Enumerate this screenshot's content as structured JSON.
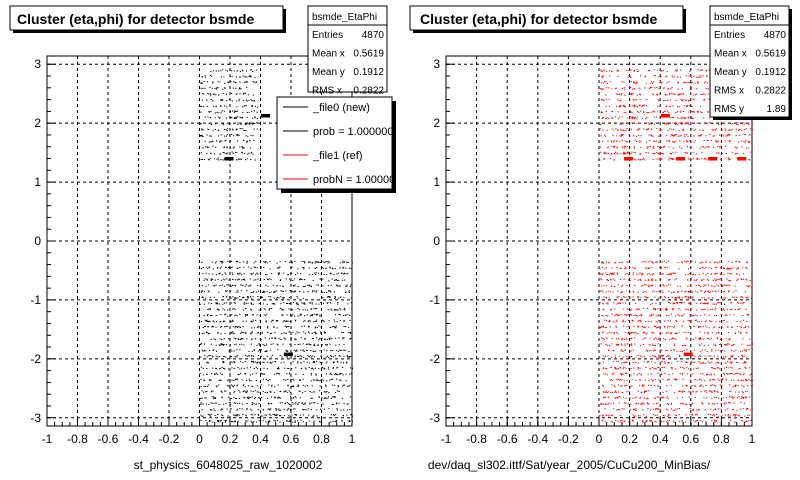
{
  "chart_data": [
    {
      "type": "scatter",
      "title": "Cluster (eta,phi) for detector bsmde",
      "xlabel": "",
      "ylabel": "",
      "xlim": [
        -1,
        1
      ],
      "ylim": [
        -3.14,
        3.14
      ],
      "xticks": [
        "-1",
        "-0.8",
        "-0.6",
        "-0.4",
        "-0.2",
        "0",
        "0.2",
        "0.4",
        "0.6",
        "0.8",
        "1"
      ],
      "yticks": [
        "3",
        "2",
        "1",
        "0",
        "-1",
        "-2",
        "-3"
      ],
      "grid": true,
      "stats": {
        "name": "bsmde_EtaPhi",
        "rows": [
          {
            "label": "Entries",
            "value": "4870"
          },
          {
            "label": "Mean x",
            "value": "0.5619"
          },
          {
            "label": "Mean y",
            "value": "0.1912"
          },
          {
            "label": "RMS x",
            "value": "0.2822"
          }
        ]
      },
      "legend": {
        "placement": "top-right",
        "entries": [
          {
            "label": "_file0 (new)",
            "color": "#000000"
          },
          {
            "label": "prob = 1.000000",
            "color": "#000000"
          },
          {
            "label": "_file1 (ref)",
            "color": "#ff0000"
          },
          {
            "label": "probN = 1.000000",
            "color": "#ff0000"
          }
        ]
      },
      "series": [
        {
          "color": "#000000",
          "regions": [
            {
              "x": [
                0.0,
                0.38
              ],
              "y": [
                1.4,
                3.0
              ]
            },
            {
              "x": [
                0.0,
                1.0
              ],
              "y": [
                -3.05,
                -0.3
              ]
            }
          ],
          "hotspots": [
            {
              "x": 0.19,
              "y": 1.4
            },
            {
              "x": 0.43,
              "y": 2.13
            },
            {
              "x": 0.58,
              "y": -1.92
            }
          ]
        }
      ],
      "footer": "st_physics_6048025_raw_1020002"
    },
    {
      "type": "scatter",
      "title": "Cluster (eta,phi) for detector bsmde",
      "xlabel": "",
      "ylabel": "",
      "xlim": [
        -1,
        1
      ],
      "ylim": [
        -3.14,
        3.14
      ],
      "xticks": [
        "-1",
        "-0.8",
        "-0.6",
        "-0.4",
        "-0.2",
        "0",
        "0.2",
        "0.4",
        "0.6",
        "0.8",
        "1"
      ],
      "yticks": [
        "3",
        "2",
        "1",
        "0",
        "-1",
        "-2",
        "-3"
      ],
      "grid": true,
      "stats": {
        "name": "bsmde_EtaPhi",
        "rows": [
          {
            "label": "Entries",
            "value": "4870"
          },
          {
            "label": "Mean x",
            "value": "0.5619"
          },
          {
            "label": "Mean y",
            "value": "0.1912"
          },
          {
            "label": "RMS x",
            "value": "0.2822"
          },
          {
            "label": "RMS y",
            "value": "1.89"
          }
        ]
      },
      "series": [
        {
          "color": "#ff0000",
          "regions": [
            {
              "x": [
                0.0,
                1.0
              ],
              "y": [
                1.4,
                3.0
              ]
            },
            {
              "x": [
                0.0,
                1.0
              ],
              "y": [
                -3.05,
                -0.3
              ]
            }
          ],
          "hotspots": [
            {
              "x": 0.19,
              "y": 1.4
            },
            {
              "x": 0.43,
              "y": 2.13
            },
            {
              "x": 0.53,
              "y": 1.4
            },
            {
              "x": 0.74,
              "y": 1.4
            },
            {
              "x": 0.93,
              "y": 1.4
            },
            {
              "x": 0.58,
              "y": -1.92
            }
          ]
        }
      ],
      "footer": "dev/daq_sl302.ittf/Sat/year_2005/CuCu200_MinBias/"
    }
  ]
}
